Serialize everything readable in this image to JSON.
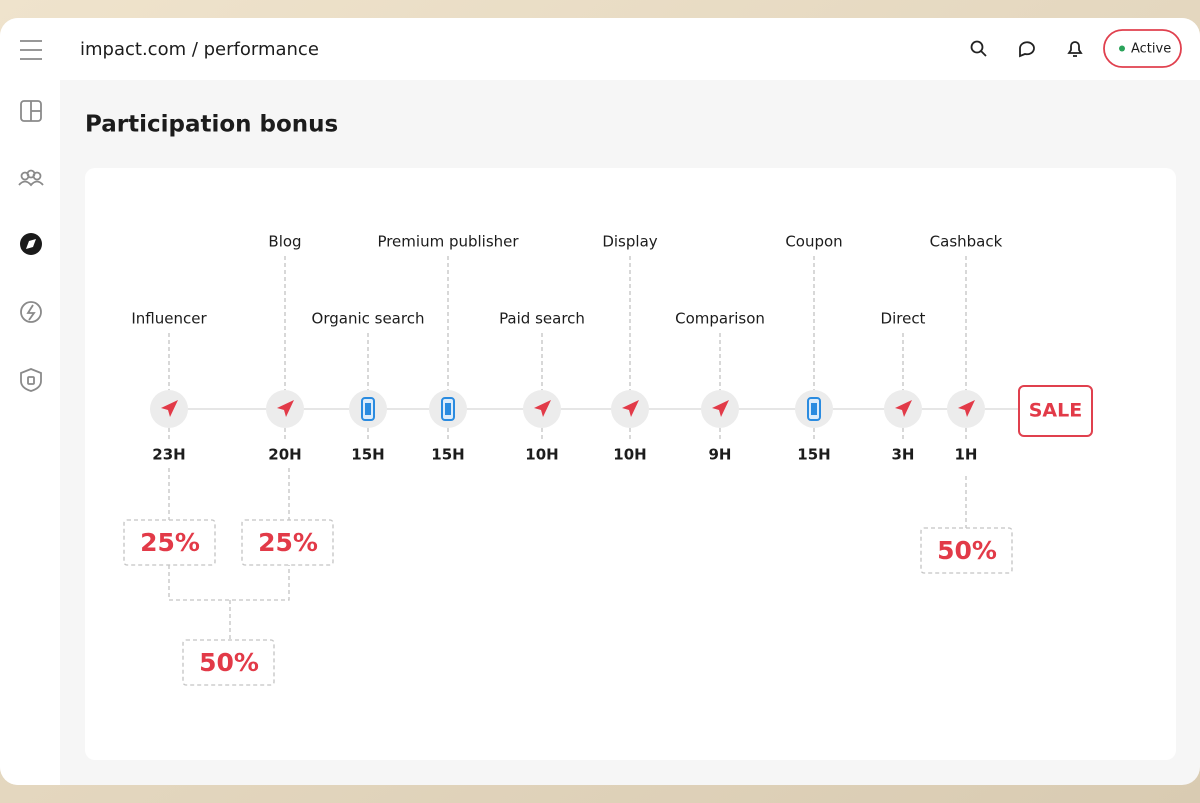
{
  "header": {
    "breadcrumb": "impact.com / performance",
    "status": "Active"
  },
  "page": {
    "title": "Participation bonus"
  },
  "timeline": {
    "touchpoints": [
      {
        "label": "Influencer",
        "time": "23H"
      },
      {
        "label": "Blog",
        "time": "20H"
      },
      {
        "label": "Organic search",
        "time": "15H"
      },
      {
        "label": "Premium publisher",
        "time": "15H"
      },
      {
        "label": "Paid search",
        "time": "10H"
      },
      {
        "label": "Display",
        "time": "10H"
      },
      {
        "label": "Comparison",
        "time": "9H"
      },
      {
        "label": "Coupon",
        "time": "15H"
      },
      {
        "label": "Direct",
        "time": "3H"
      },
      {
        "label": "Cashback",
        "time": "1H"
      }
    ],
    "end": "SALE",
    "credits": [
      "25%",
      "25%",
      "50%",
      "50%"
    ]
  }
}
